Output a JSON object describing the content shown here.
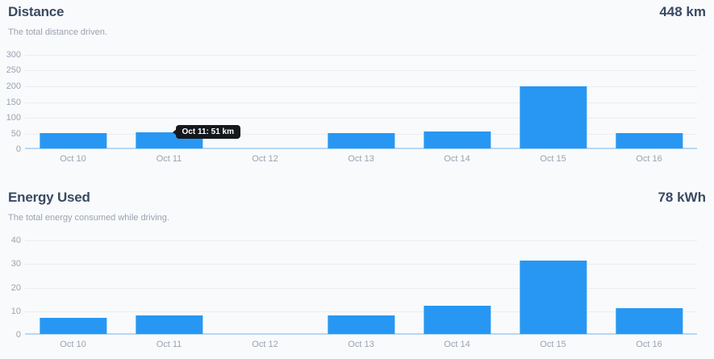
{
  "colors": {
    "page_bg": "#f9fafb",
    "bar": "#2797f3",
    "baseline": "#b5d8f5",
    "gridline": "#ebedf0",
    "title_text": "#3a4a63",
    "muted_text": "#9aa3b2",
    "tooltip_bg": "#15181c",
    "tooltip_text": "#ffffff"
  },
  "chart_data": [
    {
      "type": "bar",
      "title": "Distance",
      "subtitle": "The total distance driven.",
      "total_label": "448 km",
      "unit": "km",
      "categories": [
        "Oct 10",
        "Oct 11",
        "Oct 12",
        "Oct 13",
        "Oct 14",
        "Oct 15",
        "Oct 16"
      ],
      "values": [
        48,
        51,
        0,
        48,
        53,
        198,
        50
      ],
      "ylim": [
        0,
        300
      ],
      "yticks": [
        0,
        50,
        100,
        150,
        200,
        250,
        300
      ],
      "grid": "horizontal",
      "legend": "none",
      "tooltip": {
        "visible": true,
        "category": "Oct 11",
        "text": "Oct 11: 51 km"
      }
    },
    {
      "type": "bar",
      "title": "Energy Used",
      "subtitle": "The total energy consumed while driving.",
      "total_label": "78 kWh",
      "unit": "kWh",
      "categories": [
        "Oct 10",
        "Oct 11",
        "Oct 12",
        "Oct 13",
        "Oct 14",
        "Oct 15",
        "Oct 16"
      ],
      "values": [
        7,
        8,
        0,
        8,
        12,
        31,
        11
      ],
      "ylim": [
        0,
        40
      ],
      "yticks": [
        0,
        10,
        20,
        30,
        40
      ],
      "grid": "horizontal",
      "legend": "none",
      "tooltip": {
        "visible": false
      }
    }
  ]
}
